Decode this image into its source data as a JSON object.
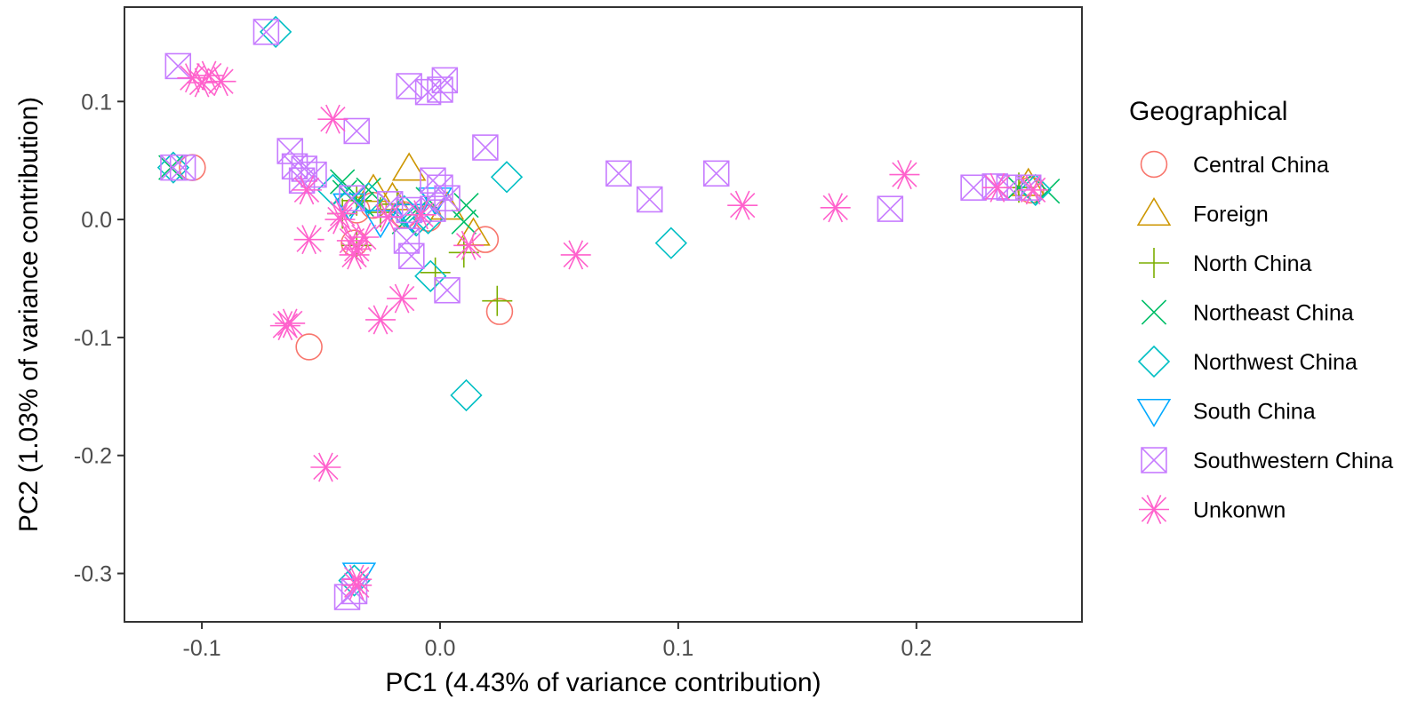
{
  "chart_data": {
    "type": "scatter",
    "title": "",
    "xlabel": "PC1 (4.43% of variance contribution)",
    "ylabel": "PC2 (1.03% of variance contribution)",
    "xlim": [
      -0.1325,
      0.2695
    ],
    "ylim": [
      -0.341,
      0.18
    ],
    "x_ticks": [
      -0.1,
      0.0,
      0.1,
      0.2
    ],
    "x_tick_labels": [
      "-0.1",
      "0.0",
      "0.1",
      "0.2"
    ],
    "y_ticks": [
      0.1,
      0.0,
      -0.1,
      -0.2,
      -0.3
    ],
    "y_tick_labels": [
      "0.1",
      "0.0",
      "-0.1",
      "-0.2",
      "-0.3"
    ],
    "grid": false,
    "legend": {
      "title": "Geographical",
      "placement": "right"
    },
    "series": [
      {
        "name": "Central China",
        "shape": "circle",
        "color": "#F8766D",
        "points": [
          [
            -0.104,
            0.044
          ],
          [
            -0.055,
            -0.108
          ],
          [
            0.025,
            -0.078
          ],
          [
            0.019,
            -0.017
          ],
          [
            -0.035,
            0.008
          ],
          [
            -0.028,
            0.012
          ],
          [
            -0.015,
            0.004
          ],
          [
            -0.005,
            0.001
          ],
          [
            -0.036,
            -0.02
          ],
          [
            0.248,
            0.025
          ]
        ]
      },
      {
        "name": "Foreign",
        "shape": "triangle",
        "color": "#CD9600",
        "points": [
          [
            -0.013,
            0.043
          ],
          [
            -0.028,
            0.025
          ],
          [
            0.003,
            0.01
          ],
          [
            0.014,
            -0.012
          ],
          [
            0.247,
            0.03
          ],
          [
            -0.02,
            0.018
          ]
        ]
      },
      {
        "name": "North China",
        "shape": "plus",
        "color": "#7CAE00",
        "points": [
          [
            0.024,
            -0.069
          ],
          [
            -0.002,
            -0.045
          ],
          [
            -0.035,
            0.016
          ],
          [
            -0.035,
            -0.022
          ],
          [
            -0.025,
            0.006
          ],
          [
            -0.018,
            0.013
          ],
          [
            0.01,
            -0.028
          ],
          [
            0.243,
            0.027
          ],
          [
            -0.041,
            0.005
          ]
        ]
      },
      {
        "name": "Northeast  China",
        "shape": "x",
        "color": "#00BE67",
        "points": [
          [
            -0.113,
            0.044
          ],
          [
            -0.041,
            0.032
          ],
          [
            -0.03,
            0.025
          ],
          [
            0.011,
            0.012
          ],
          [
            0.01,
            -0.002
          ],
          [
            -0.005,
            0.017
          ],
          [
            -0.04,
            0.023
          ],
          [
            0.255,
            0.024
          ],
          [
            0.243,
            0.027
          ],
          [
            -0.015,
            -0.002
          ],
          [
            -0.033,
            0.013
          ]
        ]
      },
      {
        "name": "Northwest China",
        "shape": "diamond",
        "color": "#00BFC4",
        "points": [
          [
            -0.069,
            0.159
          ],
          [
            -0.112,
            0.044
          ],
          [
            -0.036,
            -0.306
          ],
          [
            0.011,
            -0.149
          ],
          [
            0.028,
            0.036
          ],
          [
            0.097,
            -0.02
          ],
          [
            -0.004,
            -0.048
          ],
          [
            -0.01,
            -0.001
          ],
          [
            -0.015,
            0.007
          ],
          [
            -0.03,
            0.018
          ],
          [
            -0.005,
            0.001
          ],
          [
            0.25,
            0.025
          ],
          [
            -0.045,
            0.025
          ]
        ]
      },
      {
        "name": "South China",
        "shape": "triangle-down",
        "color": "#00A9FF",
        "points": [
          [
            -0.034,
            -0.301
          ],
          [
            -0.038,
            0.012
          ],
          [
            -0.002,
            0.017
          ],
          [
            -0.012,
            0.003
          ],
          [
            -0.025,
            -0.002
          ]
        ]
      },
      {
        "name": "Southwestern China",
        "shape": "boxx",
        "color": "#C77CFF",
        "points": [
          [
            -0.073,
            0.159
          ],
          [
            -0.11,
            0.13
          ],
          [
            -0.013,
            0.113
          ],
          [
            -0.005,
            0.108
          ],
          [
            0.0,
            0.11
          ],
          [
            0.002,
            0.118
          ],
          [
            -0.035,
            0.075
          ],
          [
            0.019,
            0.061
          ],
          [
            -0.063,
            0.058
          ],
          [
            -0.061,
            0.045
          ],
          [
            -0.057,
            0.043
          ],
          [
            -0.053,
            0.038
          ],
          [
            -0.058,
            0.033
          ],
          [
            -0.112,
            0.044
          ],
          [
            -0.108,
            0.044
          ],
          [
            -0.003,
            0.033
          ],
          [
            0.0,
            0.027
          ],
          [
            -0.037,
            0.018
          ],
          [
            -0.021,
            0.013
          ],
          [
            -0.013,
            0.008
          ],
          [
            -0.003,
            0.009
          ],
          [
            0.003,
            0.018
          ],
          [
            -0.014,
            -0.018
          ],
          [
            -0.012,
            -0.031
          ],
          [
            0.003,
            -0.06
          ],
          [
            0.075,
            0.039
          ],
          [
            0.088,
            0.017
          ],
          [
            0.116,
            0.039
          ],
          [
            0.189,
            0.009
          ],
          [
            0.224,
            0.027
          ],
          [
            0.233,
            0.028
          ],
          [
            0.239,
            0.027
          ],
          [
            0.247,
            0.027
          ],
          [
            -0.036,
            -0.315
          ],
          [
            -0.039,
            -0.32
          ]
        ]
      },
      {
        "name": "Unkonwn",
        "shape": "asterisk",
        "color": "#FF61CC",
        "points": [
          [
            -0.104,
            0.12
          ],
          [
            -0.1,
            0.116
          ],
          [
            -0.097,
            0.122
          ],
          [
            -0.092,
            0.117
          ],
          [
            -0.045,
            0.085
          ],
          [
            -0.056,
            0.025
          ],
          [
            -0.055,
            -0.017
          ],
          [
            -0.041,
            0.005
          ],
          [
            -0.037,
            -0.018
          ],
          [
            -0.036,
            -0.03
          ],
          [
            -0.035,
            -0.025
          ],
          [
            -0.032,
            -0.015
          ],
          [
            -0.022,
            0.002
          ],
          [
            0.012,
            -0.022
          ],
          [
            -0.016,
            -0.067
          ],
          [
            -0.025,
            -0.085
          ],
          [
            -0.063,
            -0.088
          ],
          [
            -0.065,
            -0.09
          ],
          [
            -0.048,
            -0.21
          ],
          [
            -0.035,
            -0.305
          ],
          [
            -0.035,
            -0.31
          ],
          [
            0.057,
            -0.03
          ],
          [
            0.127,
            0.012
          ],
          [
            0.166,
            0.01
          ],
          [
            0.195,
            0.038
          ],
          [
            0.234,
            0.027
          ],
          [
            0.249,
            0.025
          ],
          [
            -0.042,
            0.0
          ],
          [
            -0.008,
            0.004
          ]
        ]
      }
    ]
  }
}
